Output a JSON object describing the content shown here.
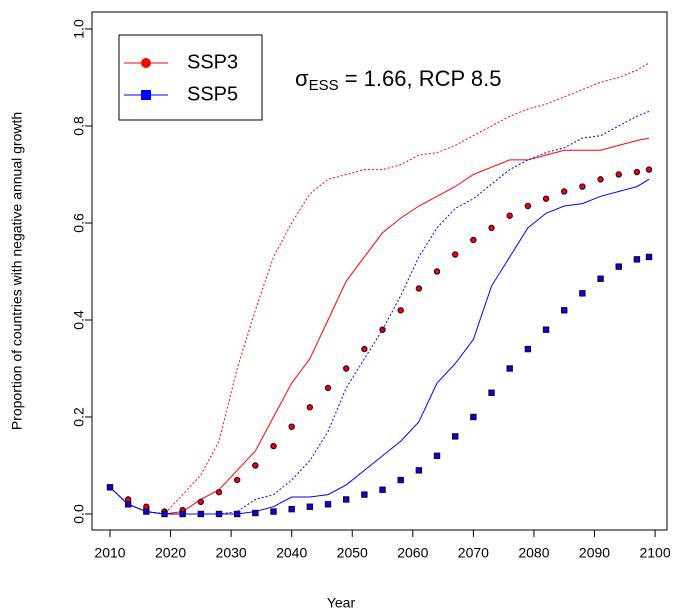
{
  "chart_data": {
    "type": "line",
    "xlabel": "Year",
    "ylabel": "Proportion of countries with negative annual growth",
    "annotation": {
      "symbol": "σ",
      "subscript": "ESS",
      "text": " = 1.66, RCP 8.5"
    },
    "x": [
      2010,
      2013,
      2016,
      2019,
      2022,
      2025,
      2028,
      2031,
      2034,
      2037,
      2040,
      2043,
      2046,
      2049,
      2052,
      2055,
      2058,
      2061,
      2064,
      2067,
      2070,
      2073,
      2076,
      2079,
      2082,
      2085,
      2088,
      2091,
      2094,
      2097,
      2099
    ],
    "series": [
      {
        "name": "SSP3",
        "color": "#ff0000",
        "marker": "circle",
        "values": [
          0.055,
          0.03,
          0.015,
          0.005,
          0.008,
          0.025,
          0.045,
          0.07,
          0.1,
          0.14,
          0.18,
          0.22,
          0.26,
          0.3,
          0.34,
          0.38,
          0.42,
          0.465,
          0.5,
          0.535,
          0.565,
          0.59,
          0.615,
          0.635,
          0.65,
          0.665,
          0.675,
          0.69,
          0.7,
          0.705,
          0.71
        ],
        "lower": [
          0.055,
          0.02,
          0.005,
          0,
          0.005,
          0.03,
          0.05,
          0.09,
          0.13,
          0.2,
          0.27,
          0.32,
          0.4,
          0.48,
          0.53,
          0.58,
          0.61,
          0.635,
          0.655,
          0.675,
          0.7,
          0.715,
          0.73,
          0.73,
          0.74,
          0.75,
          0.75,
          0.75,
          0.76,
          0.77,
          0.775
        ],
        "upper": [
          0.055,
          0.02,
          0.005,
          0,
          0.04,
          0.08,
          0.15,
          0.3,
          0.42,
          0.53,
          0.6,
          0.66,
          0.69,
          0.7,
          0.71,
          0.71,
          0.72,
          0.74,
          0.745,
          0.76,
          0.78,
          0.8,
          0.82,
          0.835,
          0.845,
          0.86,
          0.875,
          0.89,
          0.9,
          0.915,
          0.93
        ]
      },
      {
        "name": "SSP5",
        "color": "#0000ff",
        "marker": "square",
        "values": [
          0.055,
          0.02,
          0.005,
          0,
          0,
          0,
          0,
          0,
          0.002,
          0.005,
          0.01,
          0.015,
          0.02,
          0.03,
          0.04,
          0.05,
          0.07,
          0.09,
          0.12,
          0.16,
          0.2,
          0.25,
          0.3,
          0.34,
          0.38,
          0.42,
          0.455,
          0.485,
          0.51,
          0.525,
          0.53
        ],
        "lower": [
          0.055,
          0.02,
          0.005,
          0,
          0,
          0,
          0,
          0,
          0.005,
          0.015,
          0.035,
          0.035,
          0.04,
          0.06,
          0.09,
          0.12,
          0.15,
          0.19,
          0.27,
          0.31,
          0.36,
          0.47,
          0.53,
          0.59,
          0.62,
          0.635,
          0.64,
          0.655,
          0.665,
          0.675,
          0.69
        ],
        "upper": [
          0.055,
          0.02,
          0.005,
          0,
          0,
          0,
          0,
          0.005,
          0.03,
          0.04,
          0.07,
          0.11,
          0.17,
          0.26,
          0.32,
          0.38,
          0.45,
          0.53,
          0.59,
          0.63,
          0.65,
          0.68,
          0.71,
          0.73,
          0.745,
          0.755,
          0.775,
          0.78,
          0.8,
          0.82,
          0.83
        ]
      }
    ],
    "xlim": [
      2007.03,
      2101.97
    ],
    "ylim": [
      -0.033,
      1.035
    ],
    "xticks": [
      2010,
      2020,
      2030,
      2040,
      2050,
      2060,
      2070,
      2080,
      2090,
      2100
    ],
    "yticks": [
      {
        "value": 0,
        "label": "0.0"
      },
      {
        "value": 0.2,
        "label": "0.2"
      },
      {
        "value": 0.4,
        "label": "0.4"
      },
      {
        "value": 0.6,
        "label": "0.6"
      },
      {
        "value": 0.8,
        "label": "0.8"
      },
      {
        "value": 1,
        "label": "1.0"
      }
    ],
    "legend": "top-left"
  }
}
